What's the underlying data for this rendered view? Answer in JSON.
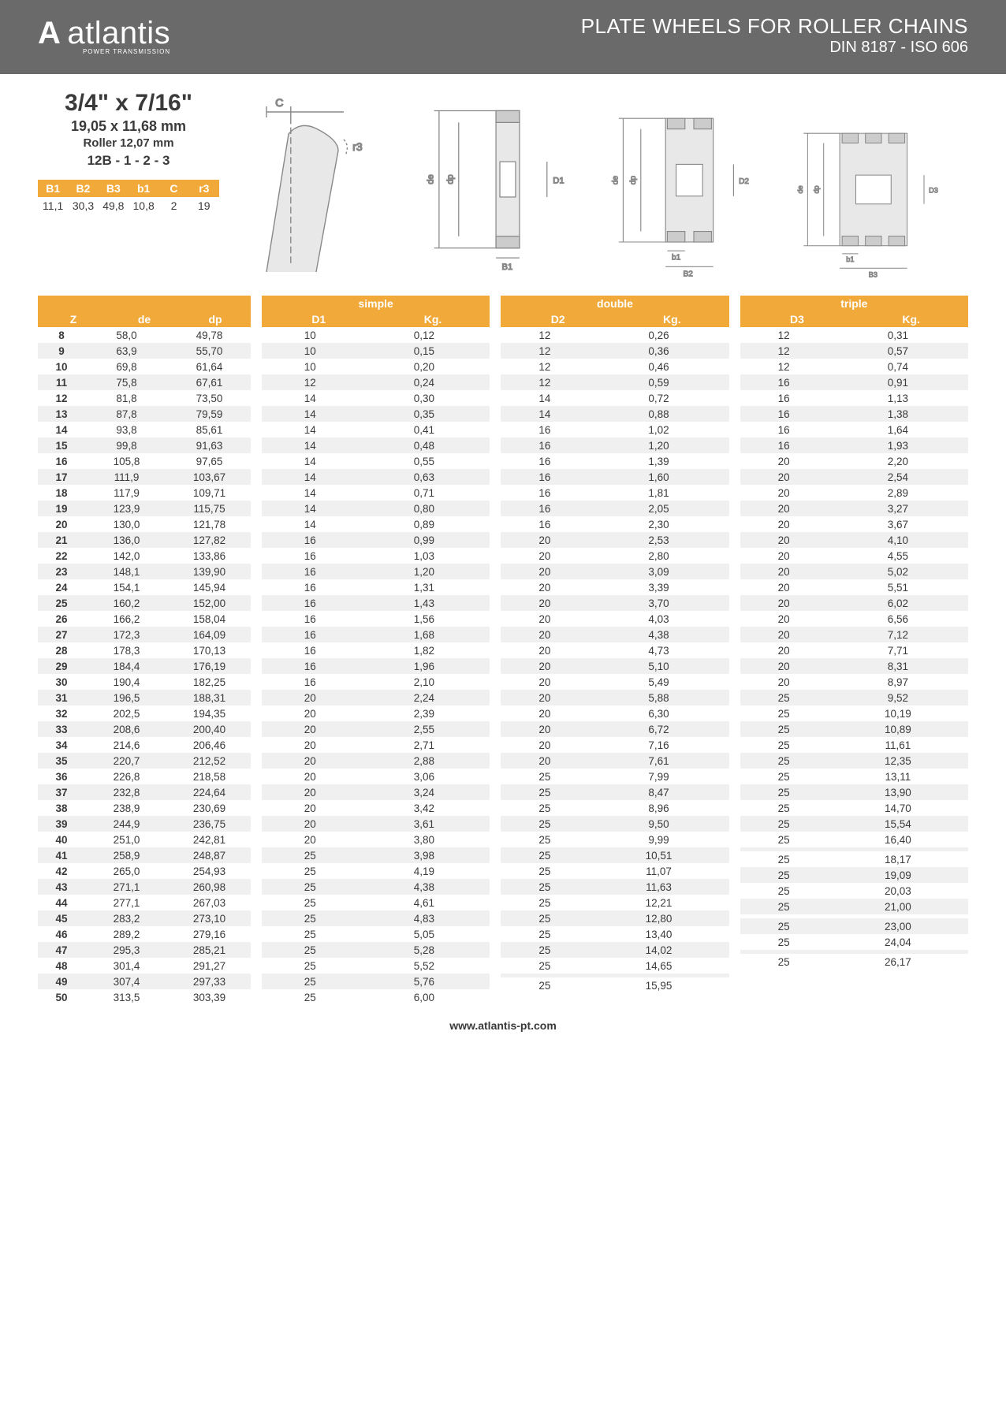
{
  "header": {
    "logo_text": "atlantis",
    "logo_sub": "POWER TRANSMISSION",
    "title_line1": "PLATE WHEELS FOR ROLLER CHAINS",
    "title_line2": "DIN 8187 - ISO 606"
  },
  "product": {
    "title": "3/4\" x 7/16\"",
    "sub1": "19,05 x 11,68 mm",
    "sub2": "Roller 12,07 mm",
    "sub3": "12B - 1 - 2 - 3"
  },
  "small_table": {
    "headers": [
      "B1",
      "B2",
      "B3",
      "b1",
      "C",
      "r3"
    ],
    "values": [
      "11,1",
      "30,3",
      "49,8",
      "10,8",
      "2",
      "19"
    ]
  },
  "colors": {
    "header_bg": "#6a6a6a",
    "accent": "#f1a93a",
    "row_alt": "#f0f0f0",
    "text": "#3a3a3a",
    "diagram_line": "#888888",
    "diagram_fill": "#dcdcdc"
  },
  "diagram_labels": [
    "C",
    "r3",
    "de",
    "dp",
    "D1",
    "B1",
    "b1",
    "B2",
    "D2",
    "D3",
    "B3"
  ],
  "table": {
    "groups": [
      "simple",
      "double",
      "triple"
    ],
    "base_headers": [
      "Z",
      "de",
      "dp"
    ],
    "group_headers": [
      [
        "D1",
        "Kg."
      ],
      [
        "D2",
        "Kg."
      ],
      [
        "D3",
        "Kg."
      ]
    ],
    "rows": [
      {
        "z": "8",
        "de": "58,0",
        "dp": "49,78",
        "d1": "10",
        "kg1": "0,12",
        "d2": "12",
        "kg2": "0,26",
        "d3": "12",
        "kg3": "0,31"
      },
      {
        "z": "9",
        "de": "63,9",
        "dp": "55,70",
        "d1": "10",
        "kg1": "0,15",
        "d2": "12",
        "kg2": "0,36",
        "d3": "12",
        "kg3": "0,57"
      },
      {
        "z": "10",
        "de": "69,8",
        "dp": "61,64",
        "d1": "10",
        "kg1": "0,20",
        "d2": "12",
        "kg2": "0,46",
        "d3": "12",
        "kg3": "0,74"
      },
      {
        "z": "11",
        "de": "75,8",
        "dp": "67,61",
        "d1": "12",
        "kg1": "0,24",
        "d2": "12",
        "kg2": "0,59",
        "d3": "16",
        "kg3": "0,91"
      },
      {
        "z": "12",
        "de": "81,8",
        "dp": "73,50",
        "d1": "14",
        "kg1": "0,30",
        "d2": "14",
        "kg2": "0,72",
        "d3": "16",
        "kg3": "1,13"
      },
      {
        "z": "13",
        "de": "87,8",
        "dp": "79,59",
        "d1": "14",
        "kg1": "0,35",
        "d2": "14",
        "kg2": "0,88",
        "d3": "16",
        "kg3": "1,38"
      },
      {
        "z": "14",
        "de": "93,8",
        "dp": "85,61",
        "d1": "14",
        "kg1": "0,41",
        "d2": "16",
        "kg2": "1,02",
        "d3": "16",
        "kg3": "1,64"
      },
      {
        "z": "15",
        "de": "99,8",
        "dp": "91,63",
        "d1": "14",
        "kg1": "0,48",
        "d2": "16",
        "kg2": "1,20",
        "d3": "16",
        "kg3": "1,93"
      },
      {
        "z": "16",
        "de": "105,8",
        "dp": "97,65",
        "d1": "14",
        "kg1": "0,55",
        "d2": "16",
        "kg2": "1,39",
        "d3": "20",
        "kg3": "2,20"
      },
      {
        "z": "17",
        "de": "111,9",
        "dp": "103,67",
        "d1": "14",
        "kg1": "0,63",
        "d2": "16",
        "kg2": "1,60",
        "d3": "20",
        "kg3": "2,54"
      },
      {
        "z": "18",
        "de": "117,9",
        "dp": "109,71",
        "d1": "14",
        "kg1": "0,71",
        "d2": "16",
        "kg2": "1,81",
        "d3": "20",
        "kg3": "2,89"
      },
      {
        "z": "19",
        "de": "123,9",
        "dp": "115,75",
        "d1": "14",
        "kg1": "0,80",
        "d2": "16",
        "kg2": "2,05",
        "d3": "20",
        "kg3": "3,27"
      },
      {
        "z": "20",
        "de": "130,0",
        "dp": "121,78",
        "d1": "14",
        "kg1": "0,89",
        "d2": "16",
        "kg2": "2,30",
        "d3": "20",
        "kg3": "3,67"
      },
      {
        "z": "21",
        "de": "136,0",
        "dp": "127,82",
        "d1": "16",
        "kg1": "0,99",
        "d2": "20",
        "kg2": "2,53",
        "d3": "20",
        "kg3": "4,10"
      },
      {
        "z": "22",
        "de": "142,0",
        "dp": "133,86",
        "d1": "16",
        "kg1": "1,03",
        "d2": "20",
        "kg2": "2,80",
        "d3": "20",
        "kg3": "4,55"
      },
      {
        "z": "23",
        "de": "148,1",
        "dp": "139,90",
        "d1": "16",
        "kg1": "1,20",
        "d2": "20",
        "kg2": "3,09",
        "d3": "20",
        "kg3": "5,02"
      },
      {
        "z": "24",
        "de": "154,1",
        "dp": "145,94",
        "d1": "16",
        "kg1": "1,31",
        "d2": "20",
        "kg2": "3,39",
        "d3": "20",
        "kg3": "5,51"
      },
      {
        "z": "25",
        "de": "160,2",
        "dp": "152,00",
        "d1": "16",
        "kg1": "1,43",
        "d2": "20",
        "kg2": "3,70",
        "d3": "20",
        "kg3": "6,02"
      },
      {
        "z": "26",
        "de": "166,2",
        "dp": "158,04",
        "d1": "16",
        "kg1": "1,56",
        "d2": "20",
        "kg2": "4,03",
        "d3": "20",
        "kg3": "6,56"
      },
      {
        "z": "27",
        "de": "172,3",
        "dp": "164,09",
        "d1": "16",
        "kg1": "1,68",
        "d2": "20",
        "kg2": "4,38",
        "d3": "20",
        "kg3": "7,12"
      },
      {
        "z": "28",
        "de": "178,3",
        "dp": "170,13",
        "d1": "16",
        "kg1": "1,82",
        "d2": "20",
        "kg2": "4,73",
        "d3": "20",
        "kg3": "7,71"
      },
      {
        "z": "29",
        "de": "184,4",
        "dp": "176,19",
        "d1": "16",
        "kg1": "1,96",
        "d2": "20",
        "kg2": "5,10",
        "d3": "20",
        "kg3": "8,31"
      },
      {
        "z": "30",
        "de": "190,4",
        "dp": "182,25",
        "d1": "16",
        "kg1": "2,10",
        "d2": "20",
        "kg2": "5,49",
        "d3": "20",
        "kg3": "8,97"
      },
      {
        "z": "31",
        "de": "196,5",
        "dp": "188,31",
        "d1": "20",
        "kg1": "2,24",
        "d2": "20",
        "kg2": "5,88",
        "d3": "25",
        "kg3": "9,52"
      },
      {
        "z": "32",
        "de": "202,5",
        "dp": "194,35",
        "d1": "20",
        "kg1": "2,39",
        "d2": "20",
        "kg2": "6,30",
        "d3": "25",
        "kg3": "10,19"
      },
      {
        "z": "33",
        "de": "208,6",
        "dp": "200,40",
        "d1": "20",
        "kg1": "2,55",
        "d2": "20",
        "kg2": "6,72",
        "d3": "25",
        "kg3": "10,89"
      },
      {
        "z": "34",
        "de": "214,6",
        "dp": "206,46",
        "d1": "20",
        "kg1": "2,71",
        "d2": "20",
        "kg2": "7,16",
        "d3": "25",
        "kg3": "11,61"
      },
      {
        "z": "35",
        "de": "220,7",
        "dp": "212,52",
        "d1": "20",
        "kg1": "2,88",
        "d2": "20",
        "kg2": "7,61",
        "d3": "25",
        "kg3": "12,35"
      },
      {
        "z": "36",
        "de": "226,8",
        "dp": "218,58",
        "d1": "20",
        "kg1": "3,06",
        "d2": "25",
        "kg2": "7,99",
        "d3": "25",
        "kg3": "13,11"
      },
      {
        "z": "37",
        "de": "232,8",
        "dp": "224,64",
        "d1": "20",
        "kg1": "3,24",
        "d2": "25",
        "kg2": "8,47",
        "d3": "25",
        "kg3": "13,90"
      },
      {
        "z": "38",
        "de": "238,9",
        "dp": "230,69",
        "d1": "20",
        "kg1": "3,42",
        "d2": "25",
        "kg2": "8,96",
        "d3": "25",
        "kg3": "14,70"
      },
      {
        "z": "39",
        "de": "244,9",
        "dp": "236,75",
        "d1": "20",
        "kg1": "3,61",
        "d2": "25",
        "kg2": "9,50",
        "d3": "25",
        "kg3": "15,54"
      },
      {
        "z": "40",
        "de": "251,0",
        "dp": "242,81",
        "d1": "20",
        "kg1": "3,80",
        "d2": "25",
        "kg2": "9,99",
        "d3": "25",
        "kg3": "16,40"
      },
      {
        "z": "41",
        "de": "258,9",
        "dp": "248,87",
        "d1": "25",
        "kg1": "3,98",
        "d2": "25",
        "kg2": "10,51",
        "d3": "",
        "kg3": ""
      },
      {
        "z": "42",
        "de": "265,0",
        "dp": "254,93",
        "d1": "25",
        "kg1": "4,19",
        "d2": "25",
        "kg2": "11,07",
        "d3": "25",
        "kg3": "18,17"
      },
      {
        "z": "43",
        "de": "271,1",
        "dp": "260,98",
        "d1": "25",
        "kg1": "4,38",
        "d2": "25",
        "kg2": "11,63",
        "d3": "25",
        "kg3": "19,09"
      },
      {
        "z": "44",
        "de": "277,1",
        "dp": "267,03",
        "d1": "25",
        "kg1": "4,61",
        "d2": "25",
        "kg2": "12,21",
        "d3": "25",
        "kg3": "20,03"
      },
      {
        "z": "45",
        "de": "283,2",
        "dp": "273,10",
        "d1": "25",
        "kg1": "4,83",
        "d2": "25",
        "kg2": "12,80",
        "d3": "25",
        "kg3": "21,00"
      },
      {
        "z": "46",
        "de": "289,2",
        "dp": "279,16",
        "d1": "25",
        "kg1": "5,05",
        "d2": "25",
        "kg2": "13,40",
        "d3": "",
        "kg3": ""
      },
      {
        "z": "47",
        "de": "295,3",
        "dp": "285,21",
        "d1": "25",
        "kg1": "5,28",
        "d2": "25",
        "kg2": "14,02",
        "d3": "25",
        "kg3": "23,00"
      },
      {
        "z": "48",
        "de": "301,4",
        "dp": "291,27",
        "d1": "25",
        "kg1": "5,52",
        "d2": "25",
        "kg2": "14,65",
        "d3": "25",
        "kg3": "24,04"
      },
      {
        "z": "49",
        "de": "307,4",
        "dp": "297,33",
        "d1": "25",
        "kg1": "5,76",
        "d2": "",
        "kg2": "",
        "d3": "",
        "kg3": ""
      },
      {
        "z": "50",
        "de": "313,5",
        "dp": "303,39",
        "d1": "25",
        "kg1": "6,00",
        "d2": "25",
        "kg2": "15,95",
        "d3": "25",
        "kg3": "26,17"
      }
    ]
  },
  "footer_url": "www.atlantis-pt.com"
}
